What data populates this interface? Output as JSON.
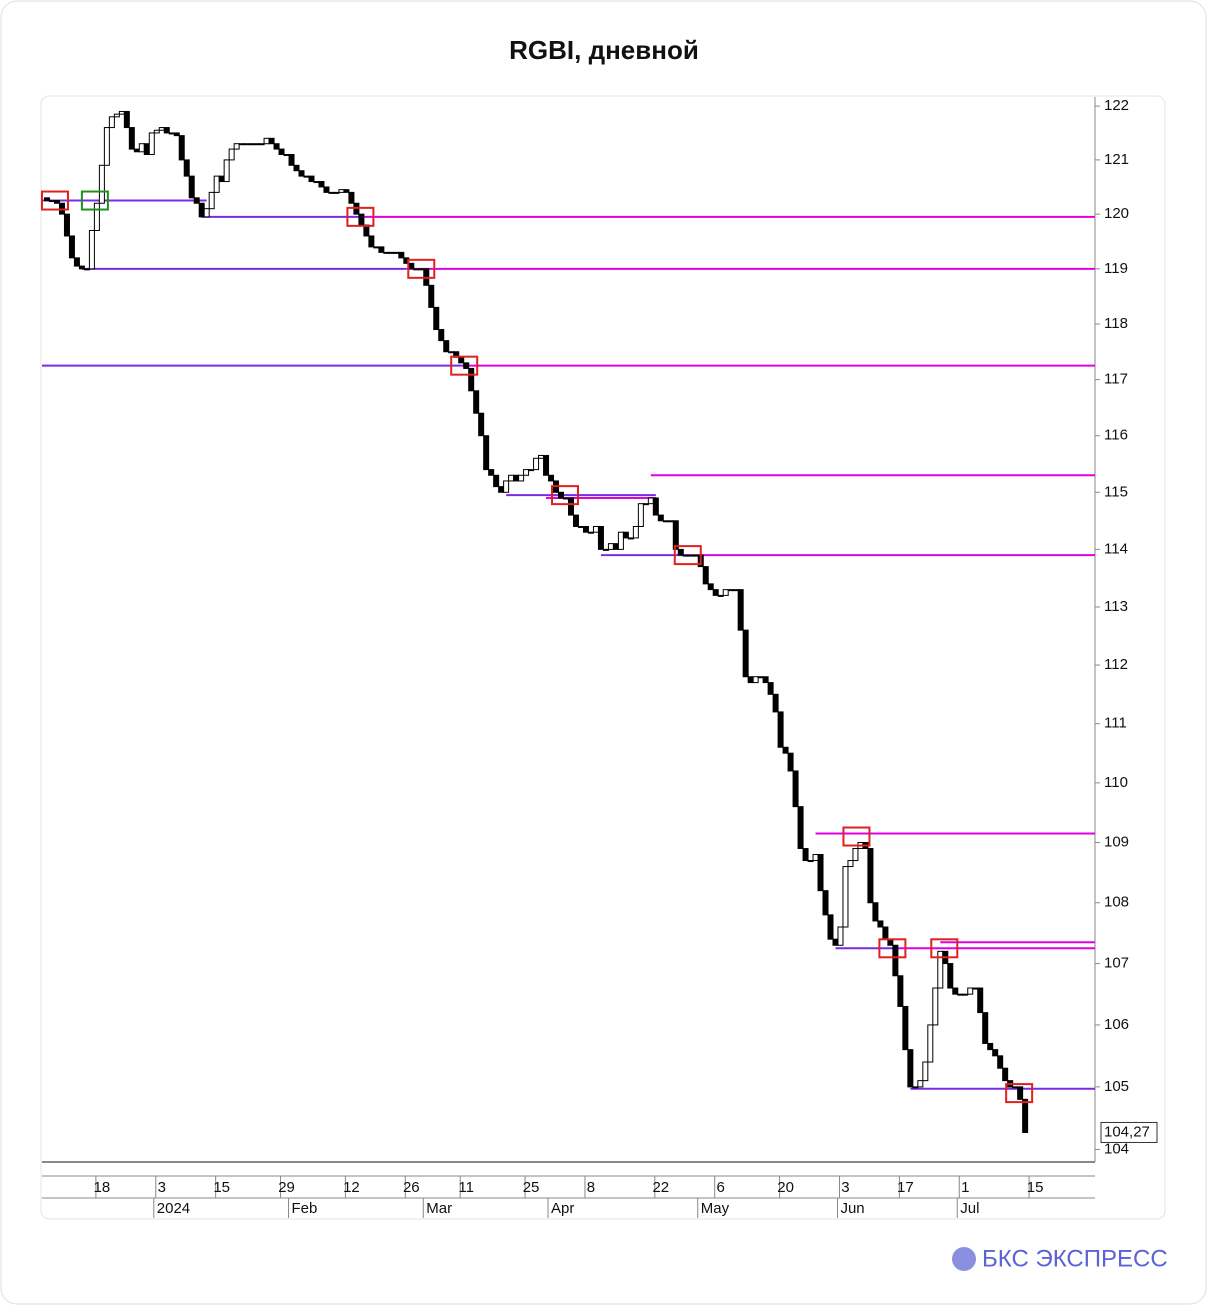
{
  "chart_data": {
    "type": "candlestick",
    "title": "RGBI, дневной",
    "brand": "БКС ЭКСПРЕСС",
    "log_scale": true,
    "ylim": [
      103.8,
      122.17
    ],
    "yticks": [
      104,
      105,
      106,
      107,
      108,
      109,
      110,
      111,
      112,
      113,
      114,
      115,
      116,
      117,
      118,
      119,
      120,
      121,
      122
    ],
    "xlim": [
      -1,
      210
    ],
    "xticks": [
      {
        "value": 11,
        "label": "18"
      },
      {
        "value": 23,
        "label": "3"
      },
      {
        "value": 35,
        "label": "15"
      },
      {
        "value": 48,
        "label": "29"
      },
      {
        "value": 61,
        "label": "12"
      },
      {
        "value": 73,
        "label": "26"
      },
      {
        "value": 84,
        "label": "11"
      },
      {
        "value": 97,
        "label": "25"
      },
      {
        "value": 109,
        "label": "8"
      },
      {
        "value": 123,
        "label": "22"
      },
      {
        "value": 135,
        "label": "6"
      },
      {
        "value": 148,
        "label": "20"
      },
      {
        "value": 160,
        "label": "3"
      },
      {
        "value": 172,
        "label": "17"
      },
      {
        "value": 184,
        "label": "1"
      },
      {
        "value": 198,
        "label": "15"
      }
    ],
    "months": [
      {
        "value": 22,
        "label": "2024"
      },
      {
        "value": 49,
        "label": "Feb"
      },
      {
        "value": 76,
        "label": "Mar"
      },
      {
        "value": 101,
        "label": "Apr"
      },
      {
        "value": 131,
        "label": "May"
      },
      {
        "value": 159,
        "label": "Jun"
      },
      {
        "value": 183,
        "label": "Jul"
      }
    ],
    "up_color": "#ffffff",
    "down_color": "#000000",
    "open": [
      120.3,
      120.25,
      120.25,
      120.2,
      120.0,
      119.6,
      119.2,
      119.05,
      119.0,
      119.0,
      119.7,
      120.2,
      120.9,
      121.6,
      121.8,
      121.85,
      121.9,
      121.6,
      121.2,
      121.15,
      121.3,
      121.1,
      121.5,
      121.55,
      121.6,
      121.5,
      121.5,
      121.45,
      121.0,
      120.7,
      120.3,
      120.2,
      119.95,
      120.1,
      120.4,
      120.7,
      120.6,
      121.0,
      121.2,
      121.3,
      121.3,
      121.3,
      121.3,
      121.3,
      121.3,
      121.4,
      121.3,
      121.2,
      121.1,
      121.1,
      120.9,
      120.8,
      120.7,
      120.7,
      120.6,
      120.6,
      120.5,
      120.4,
      120.4,
      120.4,
      120.45,
      120.4,
      120.2,
      120.0,
      119.8,
      119.6,
      119.4,
      119.4,
      119.3,
      119.3,
      119.3,
      119.3,
      119.2,
      119.1,
      119.0,
      119.0,
      119.0,
      118.7,
      118.3,
      117.9,
      117.7,
      117.5,
      117.5,
      117.4,
      117.3,
      117.2,
      116.8,
      116.4,
      116.0,
      115.4,
      115.3,
      115.1,
      115.0,
      115.2,
      115.3,
      115.2,
      115.3,
      115.4,
      115.4,
      115.6,
      115.65,
      115.3,
      115.2,
      115.0,
      114.9,
      114.9,
      114.6,
      114.4,
      114.4,
      114.3,
      114.3,
      114.4,
      114.0,
      114.0,
      114.1,
      114.0,
      114.3,
      114.2,
      114.2,
      114.4,
      114.8,
      114.8,
      114.9,
      114.6,
      114.5,
      114.5,
      114.5,
      114.0,
      113.9,
      113.9,
      113.9,
      113.9,
      113.7,
      113.4,
      113.3,
      113.2,
      113.2,
      113.3,
      113.3,
      113.3,
      112.6,
      111.8,
      111.7,
      111.8,
      111.8,
      111.7,
      111.5,
      111.2,
      110.6,
      110.5,
      110.2,
      109.6,
      108.9,
      108.7,
      108.7,
      108.8,
      108.2,
      107.8,
      107.4,
      107.3,
      107.6,
      108.6,
      108.7,
      108.9,
      109.0,
      108.9,
      108.0,
      107.7,
      107.6,
      107.4,
      107.3,
      106.8,
      106.3,
      105.6,
      105.0,
      105.0,
      105.1,
      105.4,
      106.0,
      106.6,
      107.2,
      107.0,
      106.6,
      106.5,
      106.5,
      106.5,
      106.6,
      106.6,
      106.2,
      105.7,
      105.6,
      105.5,
      105.3,
      105.1,
      105.0,
      105.0,
      104.8
    ],
    "close": [
      120.25,
      120.25,
      120.2,
      120.0,
      119.6,
      119.2,
      119.05,
      119.0,
      119.0,
      119.7,
      120.2,
      120.9,
      121.6,
      121.8,
      121.85,
      121.9,
      121.6,
      121.2,
      121.15,
      121.3,
      121.1,
      121.5,
      121.55,
      121.6,
      121.5,
      121.5,
      121.45,
      121.0,
      120.7,
      120.3,
      120.2,
      119.95,
      120.1,
      120.4,
      120.7,
      120.6,
      121.0,
      121.2,
      121.3,
      121.3,
      121.3,
      121.3,
      121.3,
      121.3,
      121.4,
      121.3,
      121.2,
      121.1,
      121.1,
      120.9,
      120.8,
      120.7,
      120.7,
      120.6,
      120.6,
      120.5,
      120.4,
      120.4,
      120.4,
      120.45,
      120.4,
      120.2,
      120.0,
      119.8,
      119.6,
      119.4,
      119.4,
      119.3,
      119.3,
      119.3,
      119.3,
      119.2,
      119.1,
      119.0,
      119.0,
      119.0,
      118.7,
      118.3,
      117.9,
      117.7,
      117.5,
      117.5,
      117.4,
      117.3,
      117.2,
      116.8,
      116.4,
      116.0,
      115.4,
      115.3,
      115.1,
      115.0,
      115.2,
      115.3,
      115.2,
      115.3,
      115.4,
      115.4,
      115.6,
      115.65,
      115.3,
      115.2,
      115.0,
      114.9,
      114.9,
      114.6,
      114.4,
      114.4,
      114.3,
      114.3,
      114.4,
      114.0,
      114.0,
      114.1,
      114.0,
      114.3,
      114.2,
      114.2,
      114.4,
      114.8,
      114.8,
      114.9,
      114.6,
      114.5,
      114.5,
      114.5,
      114.0,
      113.9,
      113.9,
      113.9,
      113.9,
      113.7,
      113.4,
      113.3,
      113.2,
      113.2,
      113.3,
      113.3,
      113.3,
      112.6,
      111.8,
      111.7,
      111.8,
      111.8,
      111.7,
      111.5,
      111.2,
      110.6,
      110.5,
      110.2,
      109.6,
      108.9,
      108.7,
      108.7,
      108.8,
      108.2,
      107.8,
      107.4,
      107.3,
      107.6,
      108.6,
      108.7,
      108.9,
      109.0,
      108.9,
      108.0,
      107.7,
      107.6,
      107.4,
      107.3,
      106.8,
      106.3,
      105.6,
      105.0,
      105.0,
      105.1,
      105.4,
      106.0,
      106.6,
      107.2,
      107.0,
      106.6,
      106.5,
      106.5,
      106.5,
      106.6,
      106.6,
      106.2,
      105.7,
      105.6,
      105.5,
      105.3,
      105.1,
      105.0,
      105.0,
      104.8,
      104.27
    ],
    "levels": [
      {
        "value": 120.25,
        "from": -1,
        "to": 32,
        "color": "#7a2be2"
      },
      {
        "value": 119.95,
        "from": 31,
        "to": 63,
        "color": "#7a2be2"
      },
      {
        "value": 119.95,
        "from": 63,
        "to": 210,
        "color": "#e000e0"
      },
      {
        "value": 119.0,
        "from": 7,
        "to": 72,
        "color": "#7a2be2"
      },
      {
        "value": 119.0,
        "from": 72,
        "to": 210,
        "color": "#e000e0"
      },
      {
        "value": 117.25,
        "from": -1,
        "to": 83,
        "color": "#7a2be2"
      },
      {
        "value": 117.25,
        "from": 83,
        "to": 210,
        "color": "#e000e0"
      },
      {
        "value": 115.3,
        "from": 121,
        "to": 210,
        "color": "#e000e0"
      },
      {
        "value": 114.95,
        "from": 92,
        "to": 122,
        "color": "#7a2be2"
      },
      {
        "value": 114.9,
        "from": 100,
        "to": 122,
        "color": "#e000e0"
      },
      {
        "value": 113.9,
        "from": 111,
        "to": 128,
        "color": "#7a2be2"
      },
      {
        "value": 113.9,
        "from": 128,
        "to": 210,
        "color": "#e000e0"
      },
      {
        "value": 109.15,
        "from": 154,
        "to": 210,
        "color": "#e000e0"
      },
      {
        "value": 107.25,
        "from": 158,
        "to": 170,
        "color": "#7a2be2"
      },
      {
        "value": 107.25,
        "from": 170,
        "to": 210,
        "color": "#e000e0"
      },
      {
        "value": 107.35,
        "from": 179,
        "to": 210,
        "color": "#e000e0"
      },
      {
        "value": 104.97,
        "from": 173,
        "to": 210,
        "color": "#7a2be2"
      }
    ],
    "boxes": [
      {
        "index": 1.6,
        "value": 120.25,
        "color": "#e02020"
      },
      {
        "index": 9.6,
        "value": 120.25,
        "color": "#209020"
      },
      {
        "index": 62.8,
        "value": 119.95,
        "color": "#e02020"
      },
      {
        "index": 75,
        "value": 119.0,
        "color": "#e02020"
      },
      {
        "index": 83.6,
        "value": 117.25,
        "color": "#e02020"
      },
      {
        "index": 103.8,
        "value": 114.95,
        "color": "#e02020"
      },
      {
        "index": 128.4,
        "value": 113.9,
        "color": "#e02020"
      },
      {
        "index": 162.2,
        "value": 109.1,
        "color": "#e02020"
      },
      {
        "index": 169.4,
        "value": 107.25,
        "color": "#e02020"
      },
      {
        "index": 179.8,
        "value": 107.25,
        "color": "#e02020"
      },
      {
        "index": 194.8,
        "value": 104.9,
        "color": "#e02020"
      }
    ],
    "last_label": {
      "value": 104.27,
      "label": "104,27"
    }
  }
}
